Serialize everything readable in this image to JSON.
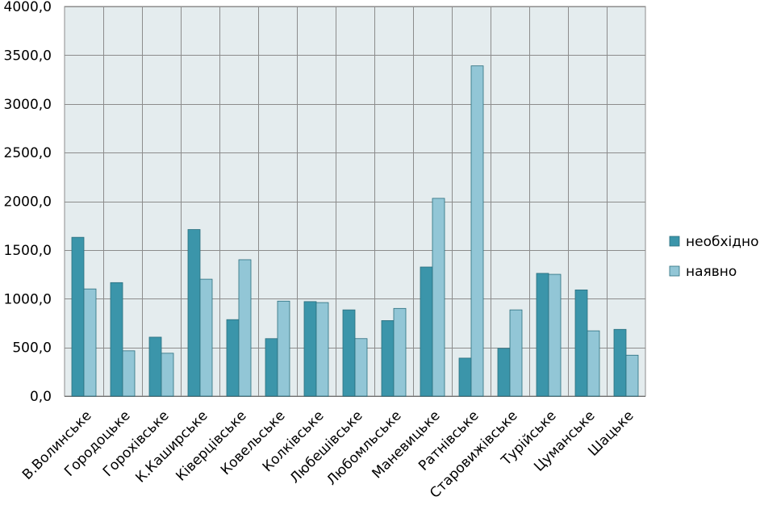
{
  "chart_data": {
    "type": "bar",
    "title": "",
    "xlabel": "",
    "ylabel": "",
    "ylim": [
      0,
      4000
    ],
    "yticks": [
      0,
      500,
      1000,
      1500,
      2000,
      2500,
      3000,
      3500,
      4000
    ],
    "ytick_labels": [
      "0,0",
      "500,0",
      "1000,0",
      "1500,0",
      "2000,0",
      "2500,0",
      "3000,0",
      "3500,0",
      "4000,0"
    ],
    "grid": true,
    "legend_position": "right",
    "categories": [
      "В.Волинське",
      "Городоцьке",
      "Горохівське",
      "К.Каширське",
      "Ківерцівське",
      "Ковельське",
      "Колківське",
      "Любешівське",
      "Любомльське",
      "Маневицьке",
      "Ратнівське",
      "Старовижівське",
      "Турійське",
      "Цуманське",
      "Шацьке"
    ],
    "series": [
      {
        "name": "необхідно",
        "color": "#3b95aa",
        "values": [
          1630,
          1165,
          605,
          1710,
          785,
          590,
          970,
          885,
          775,
          1325,
          390,
          490,
          1260,
          1090,
          685
        ]
      },
      {
        "name": "наявно",
        "color": "#92c6d6",
        "values": [
          1100,
          465,
          440,
          1200,
          1400,
          975,
          960,
          590,
          900,
          2030,
          3390,
          885,
          1250,
          670,
          420
        ]
      }
    ],
    "colors": {
      "plot_background": "#e4ecee",
      "gridline": "#8c8c8c",
      "bar_outline": "#2a6e7e"
    }
  }
}
